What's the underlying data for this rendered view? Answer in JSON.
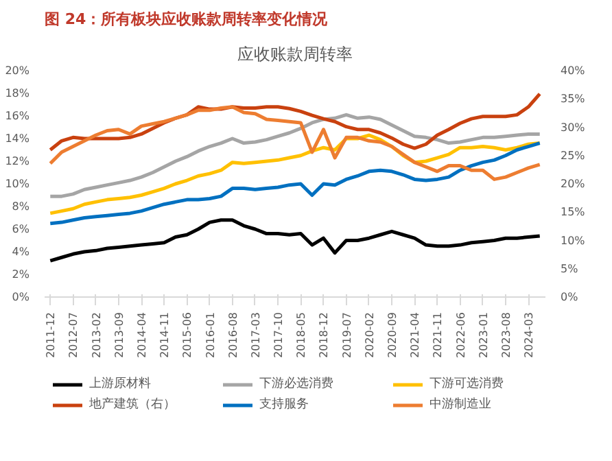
{
  "chart_data": {
    "type": "line",
    "title": "图 24：所有板块应收账款周转率变化情况",
    "subtitle": "应收账款周转率",
    "categories": [
      "2011-12",
      null,
      "2012-07",
      null,
      "2013-02",
      null,
      "2013-09",
      null,
      "2014-04",
      null,
      "2014-11",
      null,
      "2015-06",
      null,
      "2016-01",
      null,
      "2016-08",
      null,
      "2017-03",
      null,
      "2017-10",
      null,
      "2018-05",
      null,
      "2018-12",
      null,
      "2019-07",
      null,
      "2020-02",
      null,
      "2020-09",
      null,
      "2021-04",
      null,
      "2021-11",
      null,
      "2022-06",
      null,
      "2023-01",
      null,
      "2023-08",
      null,
      "2024-03",
      null
    ],
    "ylim": [
      0,
      20
    ],
    "yticks": [
      {
        "value": 0,
        "label": "0%"
      },
      {
        "value": 2,
        "label": "2%"
      },
      {
        "value": 4,
        "label": "4%"
      },
      {
        "value": 6,
        "label": "6%"
      },
      {
        "value": 8,
        "label": "8%"
      },
      {
        "value": 10,
        "label": "10%"
      },
      {
        "value": 12,
        "label": "12%"
      },
      {
        "value": 14,
        "label": "14%"
      },
      {
        "value": 16,
        "label": "16%"
      },
      {
        "value": 18,
        "label": "18%"
      },
      {
        "value": 20,
        "label": "20%"
      }
    ],
    "y2lim": [
      0,
      40
    ],
    "y2ticks": [
      {
        "value": 0,
        "label": "0%"
      },
      {
        "value": 5,
        "label": "5%"
      },
      {
        "value": 10,
        "label": "10%"
      },
      {
        "value": 15,
        "label": "15%"
      },
      {
        "value": 20,
        "label": "20%"
      },
      {
        "value": 25,
        "label": "25%"
      },
      {
        "value": 30,
        "label": "30%"
      },
      {
        "value": 35,
        "label": "35%"
      },
      {
        "value": 40,
        "label": "40%"
      }
    ],
    "grid": false,
    "legend": "bottom",
    "line_style": "solid",
    "series": [
      {
        "name": "上游原材料",
        "color": "#000000",
        "values": [
          3.2,
          3.5,
          3.8,
          4.0,
          4.1,
          4.3,
          4.4,
          4.5,
          4.6,
          4.7,
          4.8,
          5.3,
          5.5,
          6.0,
          6.6,
          6.8,
          6.8,
          6.3,
          6.0,
          5.6,
          5.6,
          5.5,
          5.6,
          4.6,
          5.2,
          3.9,
          5.0,
          5.0,
          5.2,
          5.5,
          5.8,
          5.5,
          5.2,
          4.6,
          4.5,
          4.5,
          4.6,
          4.8,
          4.9,
          5.0,
          5.2,
          5.2,
          5.3,
          5.4
        ]
      },
      {
        "name": "下游必选消费",
        "color": "#a5a5a5",
        "values": [
          8.9,
          8.9,
          9.1,
          9.5,
          9.7,
          9.9,
          10.1,
          10.3,
          10.6,
          11.0,
          11.5,
          12.0,
          12.4,
          12.9,
          13.3,
          13.6,
          14.0,
          13.6,
          13.7,
          13.9,
          14.2,
          14.5,
          14.9,
          15.4,
          15.7,
          15.8,
          16.1,
          15.8,
          15.9,
          15.7,
          15.2,
          14.7,
          14.2,
          14.1,
          13.9,
          13.6,
          13.7,
          13.9,
          14.1,
          14.1,
          14.2,
          14.3,
          14.4,
          14.4
        ]
      },
      {
        "name": "下游可选消费",
        "color": "#ffc000",
        "values": [
          7.4,
          7.6,
          7.8,
          8.2,
          8.4,
          8.6,
          8.7,
          8.8,
          9.0,
          9.3,
          9.6,
          10.0,
          10.3,
          10.7,
          10.9,
          11.2,
          11.9,
          11.8,
          11.9,
          12.0,
          12.1,
          12.3,
          12.5,
          12.9,
          13.2,
          13.0,
          14.0,
          14.0,
          14.3,
          13.9,
          13.3,
          12.5,
          11.9,
          12.0,
          12.3,
          12.6,
          13.2,
          13.2,
          13.3,
          13.2,
          13.0,
          13.2,
          13.5,
          13.6
        ]
      },
      {
        "name": "地产建筑（右）",
        "color": "#c9410f",
        "axis": "y2",
        "values": [
          26.0,
          27.6,
          28.2,
          28.0,
          28.0,
          28.0,
          28.0,
          28.2,
          28.8,
          29.8,
          30.8,
          31.6,
          32.2,
          33.6,
          33.2,
          33.2,
          33.6,
          33.4,
          33.4,
          33.6,
          33.6,
          33.3,
          32.8,
          32.1,
          31.5,
          31.0,
          30.1,
          29.6,
          29.6,
          29.0,
          28.1,
          27.0,
          26.3,
          27.0,
          28.6,
          29.6,
          30.7,
          31.5,
          31.9,
          31.9,
          31.9,
          32.2,
          33.6,
          35.9
        ]
      },
      {
        "name": "支持服务",
        "color": "#0070c0",
        "values": [
          6.5,
          6.6,
          6.8,
          7.0,
          7.1,
          7.2,
          7.3,
          7.4,
          7.6,
          7.9,
          8.2,
          8.4,
          8.6,
          8.6,
          8.7,
          8.9,
          9.6,
          9.6,
          9.5,
          9.6,
          9.7,
          9.9,
          10.0,
          9.0,
          10.0,
          9.9,
          10.4,
          10.7,
          11.1,
          11.2,
          11.1,
          10.8,
          10.4,
          10.3,
          10.4,
          10.6,
          11.2,
          11.6,
          11.9,
          12.1,
          12.5,
          13.0,
          13.3,
          13.6
        ]
      },
      {
        "name": "中游制造业",
        "color": "#ed7d31",
        "values": [
          11.8,
          12.8,
          13.3,
          13.8,
          14.3,
          14.7,
          14.8,
          14.4,
          15.1,
          15.3,
          15.5,
          15.8,
          16.1,
          16.5,
          16.5,
          16.7,
          16.8,
          16.3,
          16.2,
          15.7,
          15.6,
          15.5,
          15.4,
          12.8,
          14.8,
          12.3,
          14.1,
          14.1,
          13.8,
          13.7,
          13.3,
          12.6,
          11.9,
          11.5,
          11.1,
          11.6,
          11.6,
          11.2,
          11.2,
          10.4,
          10.6,
          11.0,
          11.4,
          11.7
        ]
      }
    ]
  }
}
